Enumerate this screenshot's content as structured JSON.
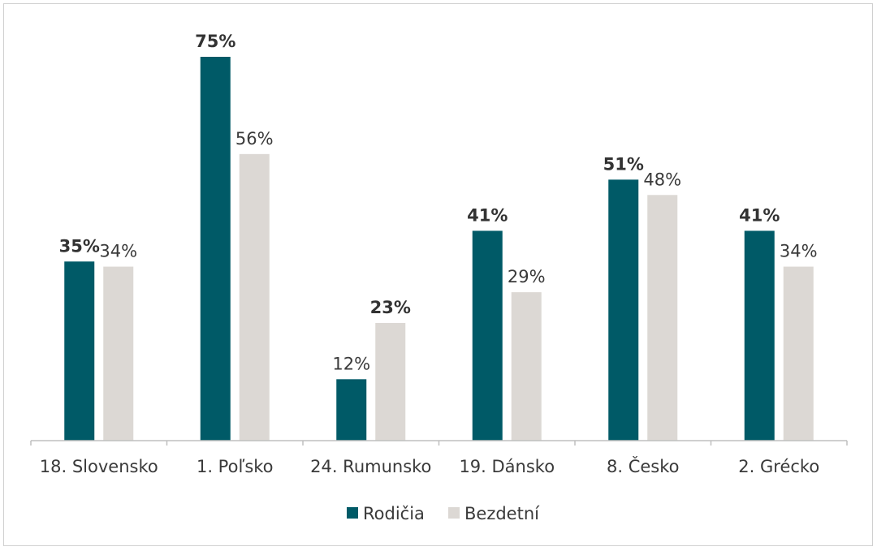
{
  "chart_data": {
    "type": "bar",
    "categories": [
      "18. Slovensko",
      "1. Poľsko",
      "24. Rumunsko",
      "19. Dánsko",
      "8. Česko",
      "2. Grécko"
    ],
    "series": [
      {
        "name": "Rodičia",
        "color": "#005a67",
        "values": [
          35,
          75,
          12,
          41,
          51,
          41
        ],
        "labels": [
          "35%",
          "75%",
          "12%",
          "41%",
          "51%",
          "41%"
        ],
        "bold": [
          true,
          true,
          false,
          true,
          true,
          true
        ]
      },
      {
        "name": "Bezdetní",
        "color": "#dcd8d4",
        "values": [
          34,
          56,
          23,
          29,
          48,
          34
        ],
        "labels": [
          "34%",
          "56%",
          "23%",
          "29%",
          "48%",
          "34%"
        ],
        "bold": [
          false,
          false,
          true,
          false,
          false,
          false
        ]
      }
    ],
    "ylim": [
      0,
      75
    ],
    "grid": false,
    "legend_position": "bottom"
  }
}
